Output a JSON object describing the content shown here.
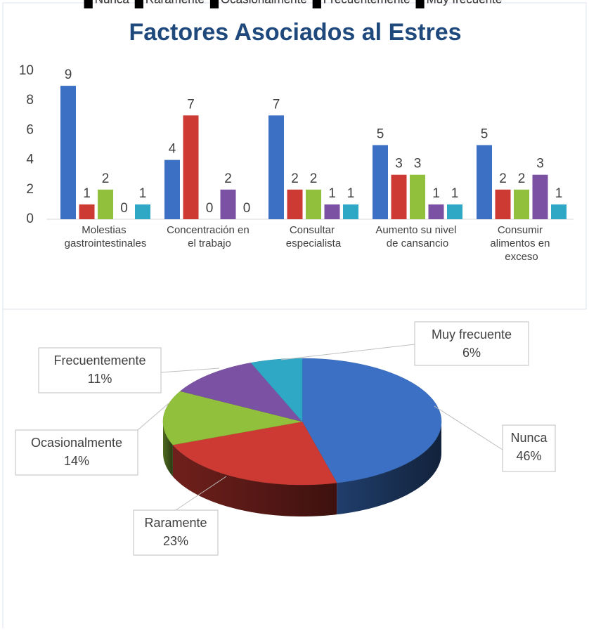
{
  "chart_data": [
    {
      "type": "bar",
      "title": "Factores Asociados al Estres",
      "categories": [
        "Molestias gastrointestinales",
        "Concentración en el trabajo",
        "Consultar especialista",
        "Aumento su nivel de cansancio",
        "Consumir alimentos en exceso"
      ],
      "series": [
        {
          "name": "Nunca",
          "color": "#3b70c4",
          "values": [
            9,
            4,
            7,
            5,
            5
          ]
        },
        {
          "name": "Raramente",
          "color": "#cc3a33",
          "values": [
            1,
            7,
            2,
            3,
            2
          ]
        },
        {
          "name": "Ocasionalmente",
          "color": "#90c03c",
          "values": [
            2,
            0,
            2,
            3,
            2
          ]
        },
        {
          "name": "Frecuentemente",
          "color": "#7b52a3",
          "values": [
            0,
            2,
            1,
            1,
            3
          ]
        },
        {
          "name": "Muy frecuente",
          "color": "#2fa8c6",
          "values": [
            1,
            0,
            1,
            1,
            1
          ]
        }
      ],
      "ylim": [
        0,
        10
      ],
      "yticks": [
        0,
        2,
        4,
        6,
        8,
        10
      ],
      "grid": false,
      "legend": "bottom"
    },
    {
      "type": "pie",
      "categories": [
        "Nunca",
        "Raramente",
        "Ocasionalmente",
        "Frecuentemente",
        "Muy frecuente"
      ],
      "values": [
        46,
        23,
        14,
        11,
        6
      ],
      "value_labels": [
        "46%",
        "23%",
        "14%",
        "11%",
        "6%"
      ],
      "colors": [
        "#3b70c4",
        "#cc3a33",
        "#90c03c",
        "#7b52a3",
        "#2fa8c6"
      ],
      "legend": "bottom"
    }
  ]
}
